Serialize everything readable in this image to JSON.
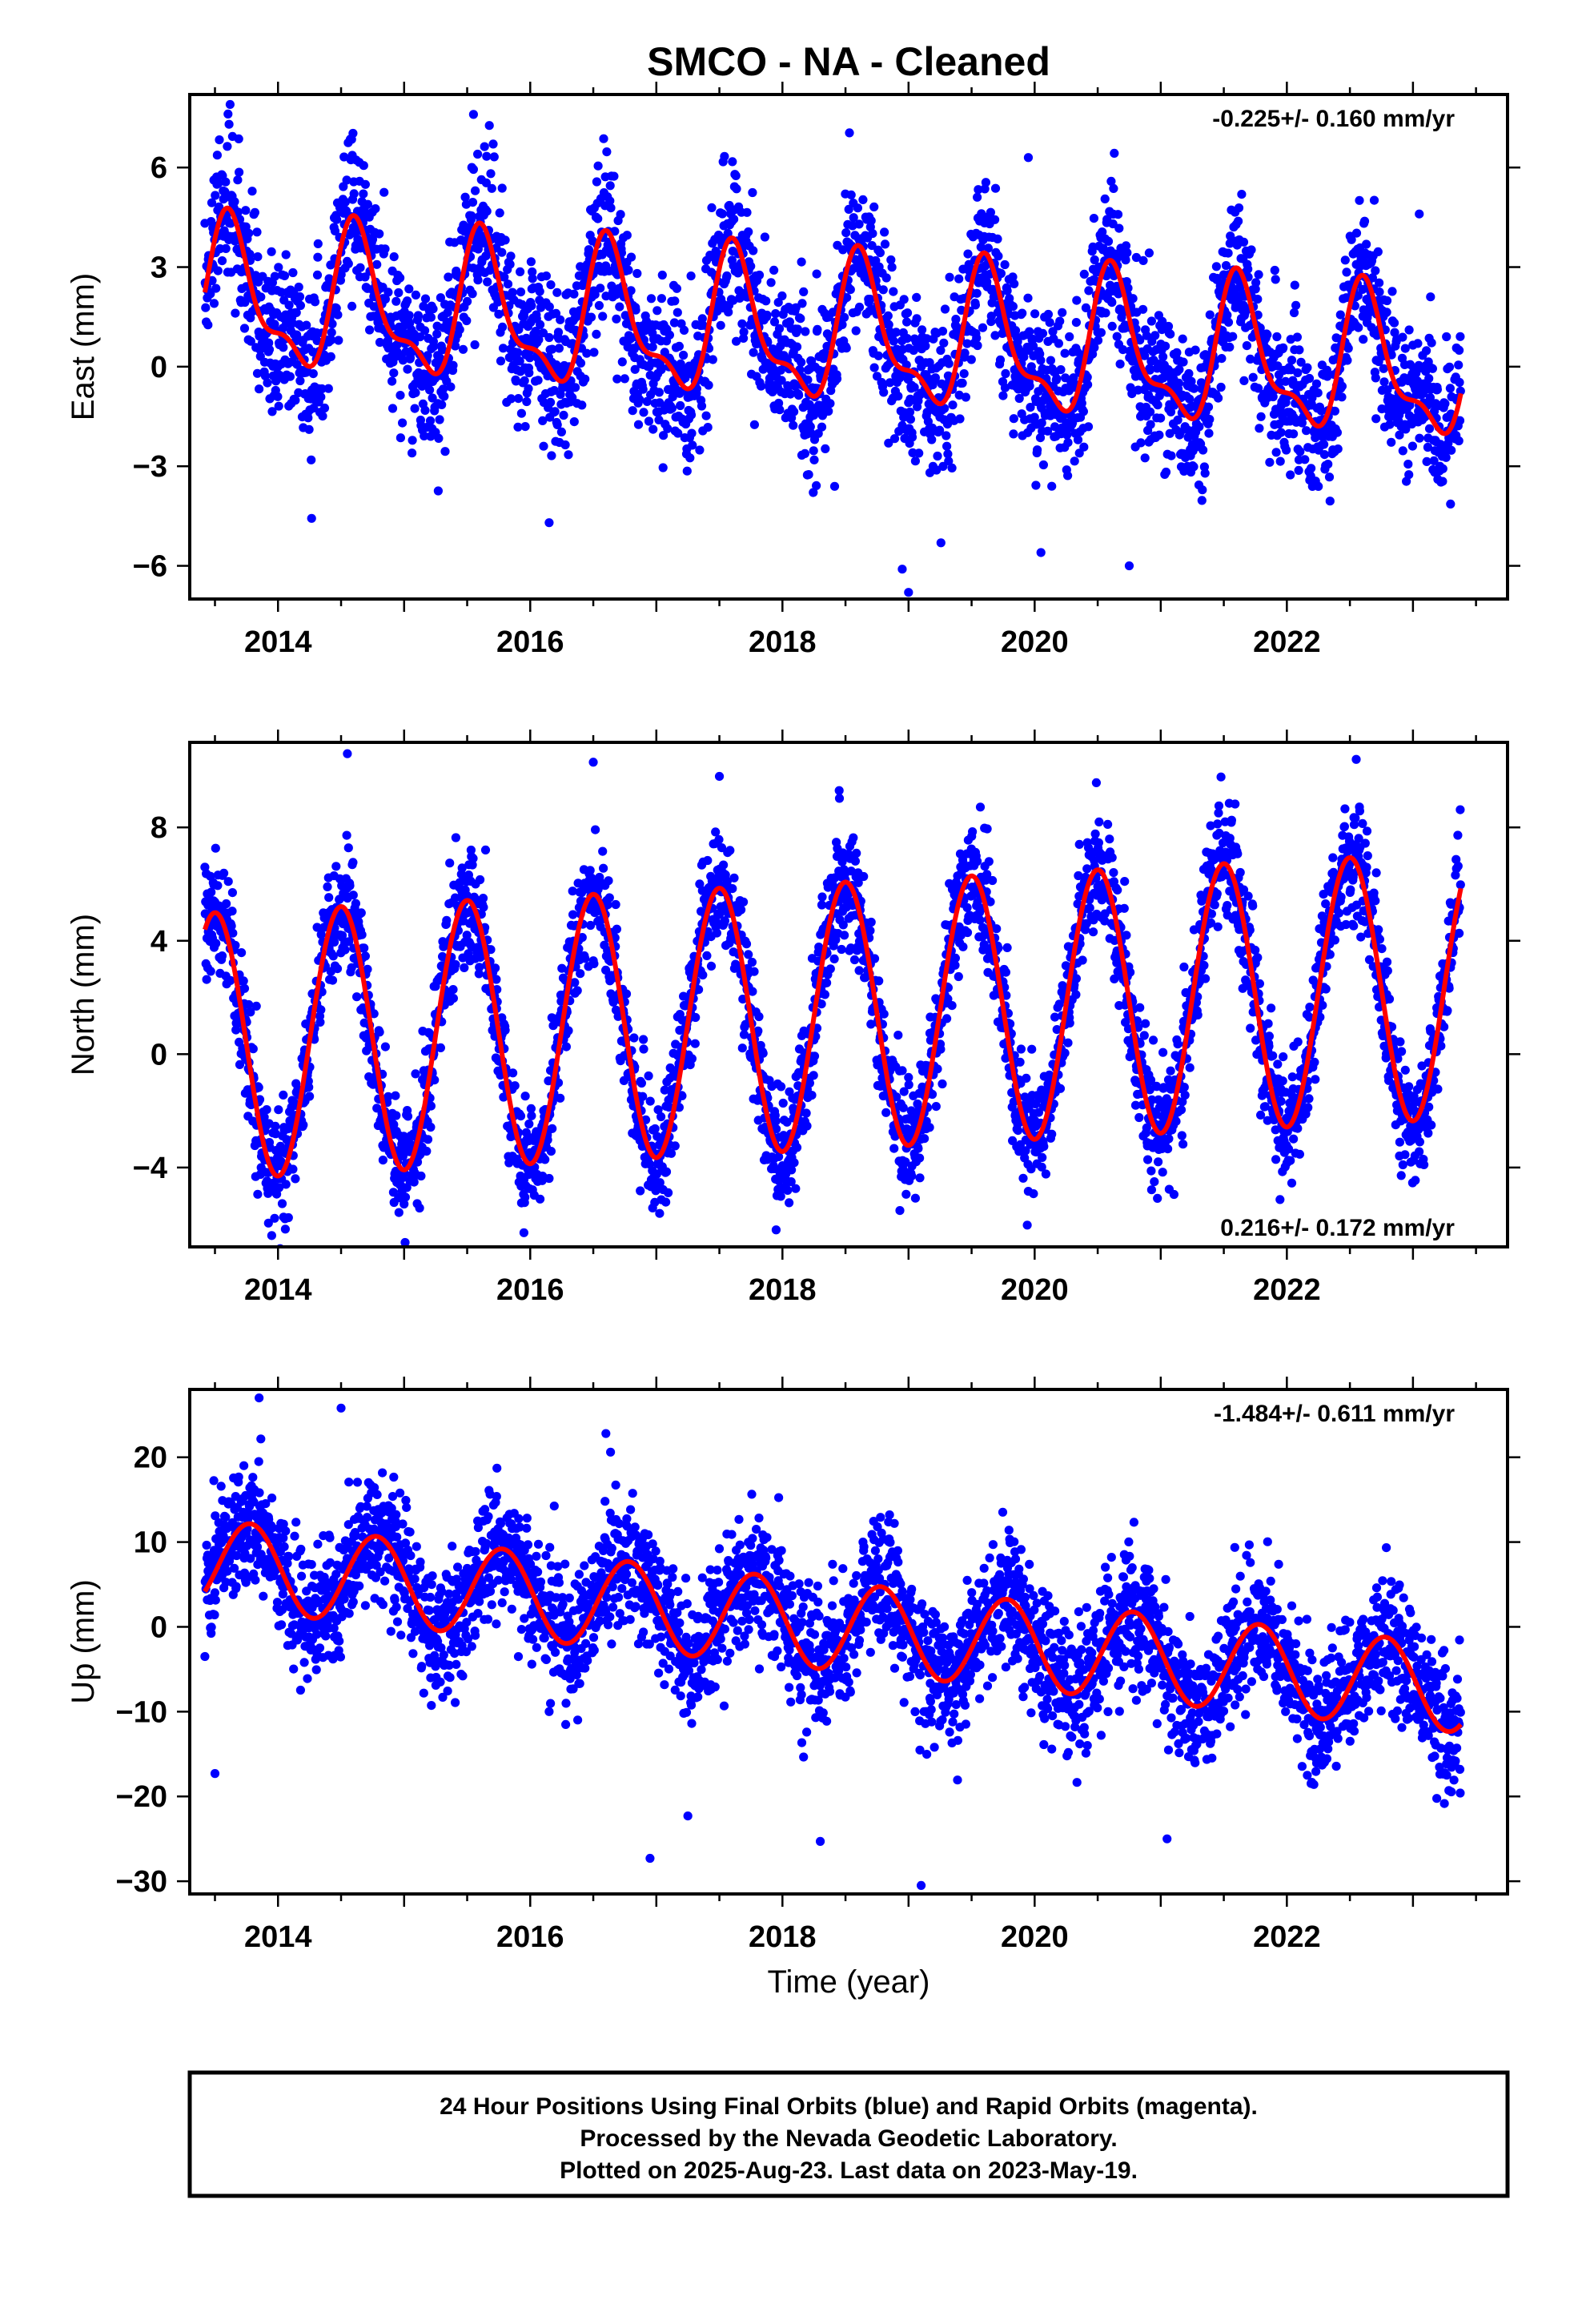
{
  "figure": {
    "title": "SMCO  - NA - Cleaned",
    "xlabel": "Time (year)",
    "footer": [
      "24 Hour Positions Using Final Orbits (blue) and Rapid Orbits (magenta).",
      "Processed by the Nevada Geodetic Laboratory.",
      "Plotted on 2025-Aug-23. Last data on 2023-May-19."
    ]
  },
  "colors": {
    "observations": "#0000ff",
    "model_fit": "#ff0000",
    "axes": "#000000"
  },
  "chart_data": [
    {
      "type": "scatter",
      "ylabel": "East (mm)",
      "rate_label": "-0.225+/- 0.160 mm/yr",
      "rate_position": "top-right",
      "xlim": [
        2013.3,
        2023.75
      ],
      "ylim": [
        -7.0,
        8.2
      ],
      "xticks": [
        2014,
        2016,
        2018,
        2020,
        2022
      ],
      "xtick_labels": [
        "2014",
        "2016",
        "2018",
        "2020",
        "2022"
      ],
      "yticks": [
        -6,
        -3,
        0,
        3,
        6
      ],
      "ytick_labels": [
        "−6",
        "−3",
        "0",
        "3",
        "6"
      ],
      "grid": false,
      "model": {
        "mean": 0.96,
        "rate": -0.225,
        "epoch": 2018.4,
        "annual_amp": 2.0,
        "annual_phase": 0.63,
        "semiannual_amp": 0.8,
        "semiannual_phase": 0.08
      },
      "scatter_sd": 1.15,
      "series": [
        {
          "x": [
            2013.42,
            2013.6,
            2013.75,
            2014.0,
            2014.35,
            2014.6,
            2014.95,
            2015.4,
            2015.6,
            2016.0,
            2016.35,
            2016.6,
            2016.95,
            2017.4,
            2017.6,
            2017.95,
            2018.4,
            2018.6,
            2018.95,
            2019.4,
            2019.6,
            2019.95,
            2020.4,
            2020.6,
            2020.95,
            2021.4,
            2021.6,
            2021.95,
            2022.4,
            2022.6,
            2022.95,
            2023.38
          ],
          "y": [
            1.2,
            3.9,
            1.8,
            -0.3,
            0.4,
            3.6,
            -0.5,
            0.2,
            3.4,
            -0.7,
            -0.1,
            3.2,
            -0.9,
            -0.4,
            3.0,
            -1.1,
            -0.6,
            2.8,
            -1.3,
            -0.8,
            2.5,
            -1.6,
            -0.9,
            2.3,
            -1.8,
            -1.1,
            2.1,
            -2.0,
            -1.3,
            1.9,
            -2.3,
            -1.2
          ]
        }
      ],
      "outliers": [
        {
          "x": 2013.62,
          "y": 7.9
        },
        {
          "x": 2015.55,
          "y": 7.6
        },
        {
          "x": 2019.95,
          "y": 6.3
        },
        {
          "x": 2018.95,
          "y": -6.1
        },
        {
          "x": 2019.0,
          "y": -6.8
        },
        {
          "x": 2020.05,
          "y": -5.6
        },
        {
          "x": 2020.75,
          "y": -6.0
        },
        {
          "x": 2016.15,
          "y": -4.7
        },
        {
          "x": 2023.05,
          "y": 4.6
        }
      ]
    },
    {
      "type": "scatter",
      "ylabel": "North (mm)",
      "rate_label": "0.216+/- 0.172 mm/yr",
      "rate_position": "bottom-right",
      "xlim": [
        2013.3,
        2023.75
      ],
      "ylim": [
        -6.8,
        11.0
      ],
      "xticks": [
        2014,
        2016,
        2018,
        2020,
        2022
      ],
      "xtick_labels": [
        "2014",
        "2016",
        "2018",
        "2020",
        "2022"
      ],
      "yticks": [
        -4,
        0,
        4,
        8
      ],
      "ytick_labels": [
        "−4",
        "0",
        "4",
        "8"
      ],
      "grid": false,
      "model": {
        "mean": 1.35,
        "rate": 0.216,
        "epoch": 2018.4,
        "annual_amp": 4.7,
        "annual_phase": 0.5,
        "semiannual_amp": 0.0,
        "semiannual_phase": 0.0
      },
      "scatter_sd": 1.05,
      "series": [
        {
          "x": [
            2013.42,
            2013.55,
            2014.0,
            2014.5,
            2015.0,
            2015.5,
            2016.0,
            2016.5,
            2017.0,
            2017.5,
            2018.0,
            2018.5,
            2019.0,
            2019.5,
            2020.0,
            2020.5,
            2021.0,
            2021.5,
            2022.0,
            2022.5,
            2023.0,
            2023.38
          ],
          "y": [
            2.2,
            5.1,
            -4.3,
            5.3,
            -4.1,
            5.6,
            -3.9,
            5.8,
            -3.6,
            6.0,
            -3.4,
            6.2,
            -3.2,
            6.4,
            -3.0,
            6.6,
            -2.7,
            6.8,
            -2.5,
            7.0,
            -2.3,
            4.5
          ]
        }
      ],
      "outliers": [
        {
          "x": 2014.55,
          "y": 10.6
        },
        {
          "x": 2016.5,
          "y": 10.3
        },
        {
          "x": 2017.5,
          "y": 9.8
        },
        {
          "x": 2018.45,
          "y": 9.3
        },
        {
          "x": 2022.55,
          "y": 10.4
        },
        {
          "x": 2013.95,
          "y": -6.4
        },
        {
          "x": 2015.95,
          "y": -6.3
        },
        {
          "x": 2017.95,
          "y": -6.2
        }
      ]
    },
    {
      "type": "scatter",
      "ylabel": "Up (mm)",
      "rate_label": "-1.484+/- 0.611 mm/yr",
      "rate_position": "top-right",
      "xlim": [
        2013.3,
        2023.75
      ],
      "ylim": [
        -31.5,
        28.0
      ],
      "xticks": [
        2014,
        2016,
        2018,
        2020,
        2022
      ],
      "xtick_labels": [
        "2014",
        "2016",
        "2018",
        "2020",
        "2022"
      ],
      "yticks": [
        -30,
        -20,
        -10,
        0,
        10,
        20
      ],
      "ytick_labels": [
        "−30",
        "−20",
        "−10",
        "0",
        "10",
        "20"
      ],
      "grid": false,
      "model": {
        "mean": 0.1,
        "rate": -1.484,
        "epoch": 2018.4,
        "annual_amp": 5.2,
        "annual_phase": 0.78,
        "semiannual_amp": 0.0,
        "semiannual_phase": 0.0
      },
      "scatter_sd": 3.8,
      "series": [
        {
          "x": [
            2013.42,
            2013.8,
            2014.3,
            2014.8,
            2015.3,
            2015.8,
            2016.3,
            2016.8,
            2017.3,
            2017.8,
            2018.3,
            2018.8,
            2019.3,
            2019.8,
            2020.3,
            2020.8,
            2021.3,
            2021.8,
            2022.3,
            2022.8,
            2023.38
          ],
          "y": [
            4.0,
            11.5,
            1.2,
            10.0,
            0.0,
            8.5,
            -1.5,
            7.0,
            -3.0,
            5.5,
            -4.5,
            4.0,
            -6.0,
            2.5,
            -7.5,
            1.0,
            -9.0,
            -0.5,
            -10.5,
            -2.0,
            -11.5
          ]
        }
      ],
      "outliers": [
        {
          "x": 2013.85,
          "y": 27.0
        },
        {
          "x": 2014.5,
          "y": 25.8
        },
        {
          "x": 2016.6,
          "y": 22.8
        },
        {
          "x": 2013.5,
          "y": -17.3
        },
        {
          "x": 2016.95,
          "y": -27.3
        },
        {
          "x": 2017.25,
          "y": -22.3
        },
        {
          "x": 2018.3,
          "y": -25.3
        },
        {
          "x": 2019.1,
          "y": -30.5
        },
        {
          "x": 2021.05,
          "y": -25.0
        }
      ]
    }
  ]
}
